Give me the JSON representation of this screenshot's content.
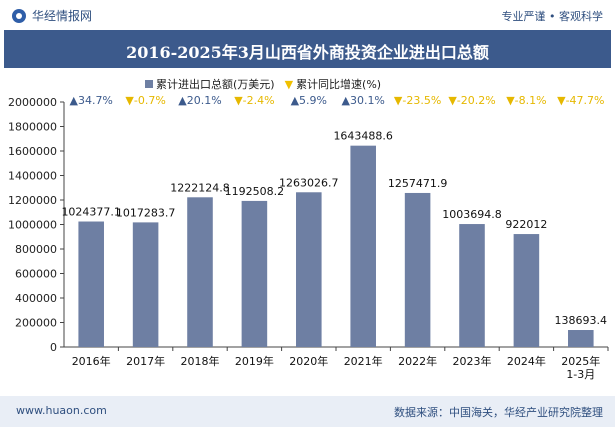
{
  "header": {
    "brand": "华经情报网",
    "slogan": "专业严谨 • 客观科学"
  },
  "footer": {
    "site": "www.huaon.com",
    "source": "数据来源：中国海关，华经产业研究院整理"
  },
  "colors": {
    "bar": "#6e7fa3",
    "up": "#3c5a8c",
    "down": "#e6b800",
    "title_bg": "#3c5a8c"
  },
  "chart_data": {
    "type": "bar",
    "title": "2016-2025年3月山西省外商投资企业进出口总额",
    "legend": {
      "series_label": "累计进出口总额(万美元)",
      "growth_label": "累计同比增速(%)"
    },
    "categories": [
      "2016年",
      "2017年",
      "2018年",
      "2019年",
      "2020年",
      "2021年",
      "2022年",
      "2023年",
      "2024年",
      "2025年\n1-3月"
    ],
    "values": [
      1024377.1,
      1017283.7,
      1222124.8,
      1192508.2,
      1263026.7,
      1643488.6,
      1257471.9,
      1003694.8,
      922012,
      138693.4
    ],
    "value_labels": [
      "1024377.1",
      "1017283.7",
      "1222124.8",
      "1192508.2",
      "1263026.7",
      "1643488.6",
      "1257471.9",
      "1003694.8",
      "922012",
      "138693.4"
    ],
    "growth": [
      34.7,
      -0.7,
      20.1,
      -2.4,
      5.9,
      30.1,
      -23.5,
      -20.2,
      -8.1,
      -47.7
    ],
    "growth_labels": [
      "▲34.7%",
      "▼-0.7%",
      "▲20.1%",
      "▼-2.4%",
      "▲5.9%",
      "▲30.1%",
      "▼-23.5%",
      "▼-20.2%",
      "▼-8.1%",
      "▼-47.7%"
    ],
    "ylim": [
      0,
      2000000
    ],
    "yticks": [
      0,
      200000,
      400000,
      600000,
      800000,
      1000000,
      1200000,
      1400000,
      1600000,
      1800000,
      2000000
    ],
    "ytick_labels": [
      "0",
      "200000",
      "400000",
      "600000",
      "800000",
      "1000000",
      "1200000",
      "1400000",
      "1600000",
      "1800000",
      "2000000"
    ],
    "xlabel": "",
    "ylabel": ""
  }
}
